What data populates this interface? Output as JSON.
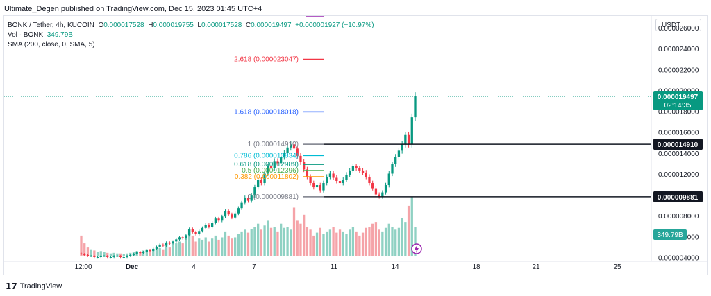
{
  "publisher_line": "Ultimate_Degen published on TradingView.com, Dec 15, 2023 01:45 UTC+4",
  "legend": {
    "symbol": "BONK / Tether, 4h, KUCOIN",
    "o_label": "O",
    "o_val": "0.000017528",
    "h_label": "H",
    "h_val": "0.000019755",
    "l_label": "L",
    "l_val": "0.000017528",
    "c_label": "C",
    "c_val": "0.000019497",
    "change": "+0.000001927 (+10.97%)",
    "vol_label": "Vol · BONK",
    "vol_val": "349.79B",
    "sma": "SMA (200, close, 0, SMA, 5)"
  },
  "currency_button": "USDT",
  "footer_brand": "TradingView",
  "colors": {
    "up": "#089981",
    "down": "#f23645",
    "vol_up": "#8fd1c3",
    "vol_down": "#f5a3a8",
    "fib_2618": "#f23645",
    "fib_1618": "#2962ff",
    "fib_0786": "#00bcd4",
    "fib_0618": "#089981",
    "fib_05": "#4caf50",
    "fib_0382": "#ff9800",
    "fib_0": "#787b86",
    "hline": "#131722",
    "last_price": "#089981"
  },
  "chart_data": {
    "type": "candlestick",
    "timeframe": "4h",
    "x_ticks": [
      "12:00",
      "Dec",
      "4",
      "7",
      "11",
      "14",
      "18",
      "21",
      "25"
    ],
    "y_ticks": [
      "0.000026000",
      "0.000024000",
      "0.000022000",
      "0.000020000",
      "0.000018000",
      "0.000016000",
      "0.000014000",
      "0.000012000",
      "0.000010000",
      "0.000008000",
      "0.000006000",
      "0.000004000"
    ],
    "ylim": [
      3.7e-06,
      2.72e-05
    ],
    "last_price_label": "0.000019497",
    "countdown": "02:14:35",
    "horizontal_lines": [
      {
        "label": "0.000014910",
        "value": 1.491e-05
      },
      {
        "label": "0.000009881",
        "value": 9.881e-06
      }
    ],
    "volume_label": "349.79B",
    "fib_levels": [
      {
        "ratio": "2.618",
        "label": "2.618 (0.000023047)",
        "value": 2.3047e-05,
        "color": "#f23645"
      },
      {
        "ratio": "1.618",
        "label": "1.618 (0.000018018)",
        "value": 1.8018e-05,
        "color": "#2962ff"
      },
      {
        "ratio": "1",
        "label": "1 (0.000014910)",
        "value": 1.491e-05,
        "color": "#787b86"
      },
      {
        "ratio": "0.786",
        "label": "0.786 (0.000013834)",
        "value": 1.3834e-05,
        "color": "#00bcd4"
      },
      {
        "ratio": "0.618",
        "label": "0.618 (0.000012989)",
        "value": 1.2989e-05,
        "color": "#089981"
      },
      {
        "ratio": "0.5",
        "label": "0.5 (0.000012396)",
        "value": 1.2396e-05,
        "color": "#4caf50"
      },
      {
        "ratio": "0.382",
        "label": "0.382 (0.000011802)",
        "value": 1.1802e-05,
        "color": "#ff9800"
      },
      {
        "ratio": "0",
        "label": "0 (0.000009881)",
        "value": 9.881e-06,
        "color": "#787b86"
      }
    ],
    "close_path": [
      4.4e-06,
      4.3e-06,
      4.2e-06,
      4.2e-06,
      4.1e-06,
      4.1e-06,
      4.2e-06,
      4.2e-06,
      4.1e-06,
      4.1e-06,
      4.2e-06,
      4.2e-06,
      4.1e-06,
      4.1e-06,
      4.2e-06,
      4.3e-06,
      4.4e-06,
      4.6e-06,
      4.5e-06,
      4.6e-06,
      4.8e-06,
      4.7e-06,
      4.9e-06,
      5.1e-06,
      5.3e-06,
      5.2e-06,
      5.5e-06,
      5.4e-06,
      5.6e-06,
      5.8e-06,
      6e-06,
      5.9e-06,
      6.2e-06,
      6.8e-06,
      6.5e-06,
      6.3e-06,
      6.6e-06,
      6.9e-06,
      7.2e-06,
      7e-06,
      7.4e-06,
      7.8e-06,
      7.6e-06,
      8e-06,
      8.5e-06,
      8.2e-06,
      7.9e-06,
      8.3e-06,
      8.8e-06,
      9.3e-06,
      9.8e-06,
      9.5e-06,
      1e-05,
      1.08e-05,
      1.15e-05,
      1.12e-05,
      1.21e-05,
      1.28e-05,
      1.26e-05,
      1.33e-05,
      1.31e-05,
      1.37e-05,
      1.41e-05,
      1.46e-05,
      1.49e-05,
      1.45e-05,
      1.38e-05,
      1.32e-05,
      1.25e-05,
      1.18e-05,
      1.12e-05,
      1.08e-05,
      1.1e-05,
      1.05e-05,
      1.12e-05,
      1.18e-05,
      1.21e-05,
      1.17e-05,
      1.14e-05,
      1.12e-05,
      1.15e-05,
      1.2e-05,
      1.24e-05,
      1.28e-05,
      1.26e-05,
      1.24e-05,
      1.22e-05,
      1.18e-05,
      1.12e-05,
      1.07e-05,
      1.01e-05,
      9.9e-06,
      1.03e-05,
      1.1e-05,
      1.21e-05,
      1.3e-05,
      1.37e-05,
      1.43e-05,
      1.49e-05,
      1.58e-05,
      1.49e-05,
      1.75e-05,
      1.95e-05
    ],
    "volume_path": [
      0.35,
      0.22,
      0.15,
      0.12,
      0.1,
      0.08,
      0.09,
      0.07,
      0.06,
      0.05,
      0.06,
      0.05,
      0.05,
      0.04,
      0.05,
      0.06,
      0.08,
      0.09,
      0.07,
      0.1,
      0.12,
      0.1,
      0.11,
      0.13,
      0.14,
      0.12,
      0.18,
      0.15,
      0.2,
      0.22,
      0.25,
      0.22,
      0.3,
      0.45,
      0.35,
      0.25,
      0.3,
      0.28,
      0.32,
      0.25,
      0.3,
      0.35,
      0.28,
      0.32,
      0.42,
      0.35,
      0.3,
      0.32,
      0.38,
      0.42,
      0.45,
      0.4,
      0.46,
      0.5,
      0.55,
      0.45,
      0.52,
      0.6,
      0.48,
      0.5,
      0.42,
      0.55,
      0.48,
      0.5,
      0.45,
      0.82,
      0.6,
      0.55,
      0.7,
      0.5,
      0.45,
      0.35,
      0.4,
      0.48,
      0.38,
      0.42,
      0.45,
      0.5,
      0.4,
      0.45,
      0.42,
      0.38,
      0.45,
      0.5,
      0.42,
      0.35,
      0.4,
      0.48,
      0.5,
      0.55,
      0.58,
      0.45,
      0.42,
      0.48,
      0.55,
      0.5,
      0.45,
      0.48,
      0.65,
      0.58,
      0.85,
      1.0,
      0.5
    ]
  }
}
